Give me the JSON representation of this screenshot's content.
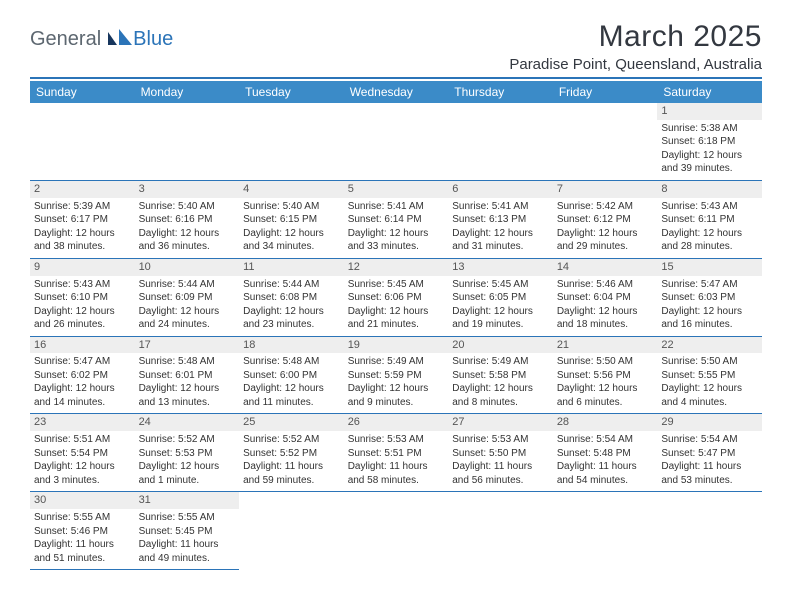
{
  "brand": {
    "text1": "General",
    "text2": "Blue"
  },
  "title": "March 2025",
  "location": "Paradise Point, Queensland, Australia",
  "colors": {
    "header_bar": "#3b8bc8",
    "divider": "#2b74b8",
    "day_strip": "#eeeeee",
    "text": "#333333",
    "logo_gray": "#5d6770",
    "logo_blue": "#2b74b8"
  },
  "fonts": {
    "title_size": 30,
    "location_size": 15,
    "header_size": 12,
    "cell_size": 10
  },
  "weekdays": [
    "Sunday",
    "Monday",
    "Tuesday",
    "Wednesday",
    "Thursday",
    "Friday",
    "Saturday"
  ],
  "leading_blanks": 6,
  "days": [
    {
      "n": 1,
      "sunrise": "5:38 AM",
      "sunset": "6:18 PM",
      "daylight": "12 hours and 39 minutes."
    },
    {
      "n": 2,
      "sunrise": "5:39 AM",
      "sunset": "6:17 PM",
      "daylight": "12 hours and 38 minutes."
    },
    {
      "n": 3,
      "sunrise": "5:40 AM",
      "sunset": "6:16 PM",
      "daylight": "12 hours and 36 minutes."
    },
    {
      "n": 4,
      "sunrise": "5:40 AM",
      "sunset": "6:15 PM",
      "daylight": "12 hours and 34 minutes."
    },
    {
      "n": 5,
      "sunrise": "5:41 AM",
      "sunset": "6:14 PM",
      "daylight": "12 hours and 33 minutes."
    },
    {
      "n": 6,
      "sunrise": "5:41 AM",
      "sunset": "6:13 PM",
      "daylight": "12 hours and 31 minutes."
    },
    {
      "n": 7,
      "sunrise": "5:42 AM",
      "sunset": "6:12 PM",
      "daylight": "12 hours and 29 minutes."
    },
    {
      "n": 8,
      "sunrise": "5:43 AM",
      "sunset": "6:11 PM",
      "daylight": "12 hours and 28 minutes."
    },
    {
      "n": 9,
      "sunrise": "5:43 AM",
      "sunset": "6:10 PM",
      "daylight": "12 hours and 26 minutes."
    },
    {
      "n": 10,
      "sunrise": "5:44 AM",
      "sunset": "6:09 PM",
      "daylight": "12 hours and 24 minutes."
    },
    {
      "n": 11,
      "sunrise": "5:44 AM",
      "sunset": "6:08 PM",
      "daylight": "12 hours and 23 minutes."
    },
    {
      "n": 12,
      "sunrise": "5:45 AM",
      "sunset": "6:06 PM",
      "daylight": "12 hours and 21 minutes."
    },
    {
      "n": 13,
      "sunrise": "5:45 AM",
      "sunset": "6:05 PM",
      "daylight": "12 hours and 19 minutes."
    },
    {
      "n": 14,
      "sunrise": "5:46 AM",
      "sunset": "6:04 PM",
      "daylight": "12 hours and 18 minutes."
    },
    {
      "n": 15,
      "sunrise": "5:47 AM",
      "sunset": "6:03 PM",
      "daylight": "12 hours and 16 minutes."
    },
    {
      "n": 16,
      "sunrise": "5:47 AM",
      "sunset": "6:02 PM",
      "daylight": "12 hours and 14 minutes."
    },
    {
      "n": 17,
      "sunrise": "5:48 AM",
      "sunset": "6:01 PM",
      "daylight": "12 hours and 13 minutes."
    },
    {
      "n": 18,
      "sunrise": "5:48 AM",
      "sunset": "6:00 PM",
      "daylight": "12 hours and 11 minutes."
    },
    {
      "n": 19,
      "sunrise": "5:49 AM",
      "sunset": "5:59 PM",
      "daylight": "12 hours and 9 minutes."
    },
    {
      "n": 20,
      "sunrise": "5:49 AM",
      "sunset": "5:58 PM",
      "daylight": "12 hours and 8 minutes."
    },
    {
      "n": 21,
      "sunrise": "5:50 AM",
      "sunset": "5:56 PM",
      "daylight": "12 hours and 6 minutes."
    },
    {
      "n": 22,
      "sunrise": "5:50 AM",
      "sunset": "5:55 PM",
      "daylight": "12 hours and 4 minutes."
    },
    {
      "n": 23,
      "sunrise": "5:51 AM",
      "sunset": "5:54 PM",
      "daylight": "12 hours and 3 minutes."
    },
    {
      "n": 24,
      "sunrise": "5:52 AM",
      "sunset": "5:53 PM",
      "daylight": "12 hours and 1 minute."
    },
    {
      "n": 25,
      "sunrise": "5:52 AM",
      "sunset": "5:52 PM",
      "daylight": "11 hours and 59 minutes."
    },
    {
      "n": 26,
      "sunrise": "5:53 AM",
      "sunset": "5:51 PM",
      "daylight": "11 hours and 58 minutes."
    },
    {
      "n": 27,
      "sunrise": "5:53 AM",
      "sunset": "5:50 PM",
      "daylight": "11 hours and 56 minutes."
    },
    {
      "n": 28,
      "sunrise": "5:54 AM",
      "sunset": "5:48 PM",
      "daylight": "11 hours and 54 minutes."
    },
    {
      "n": 29,
      "sunrise": "5:54 AM",
      "sunset": "5:47 PM",
      "daylight": "11 hours and 53 minutes."
    },
    {
      "n": 30,
      "sunrise": "5:55 AM",
      "sunset": "5:46 PM",
      "daylight": "11 hours and 51 minutes."
    },
    {
      "n": 31,
      "sunrise": "5:55 AM",
      "sunset": "5:45 PM",
      "daylight": "11 hours and 49 minutes."
    }
  ],
  "labels": {
    "sunrise": "Sunrise:",
    "sunset": "Sunset:",
    "daylight": "Daylight:"
  }
}
